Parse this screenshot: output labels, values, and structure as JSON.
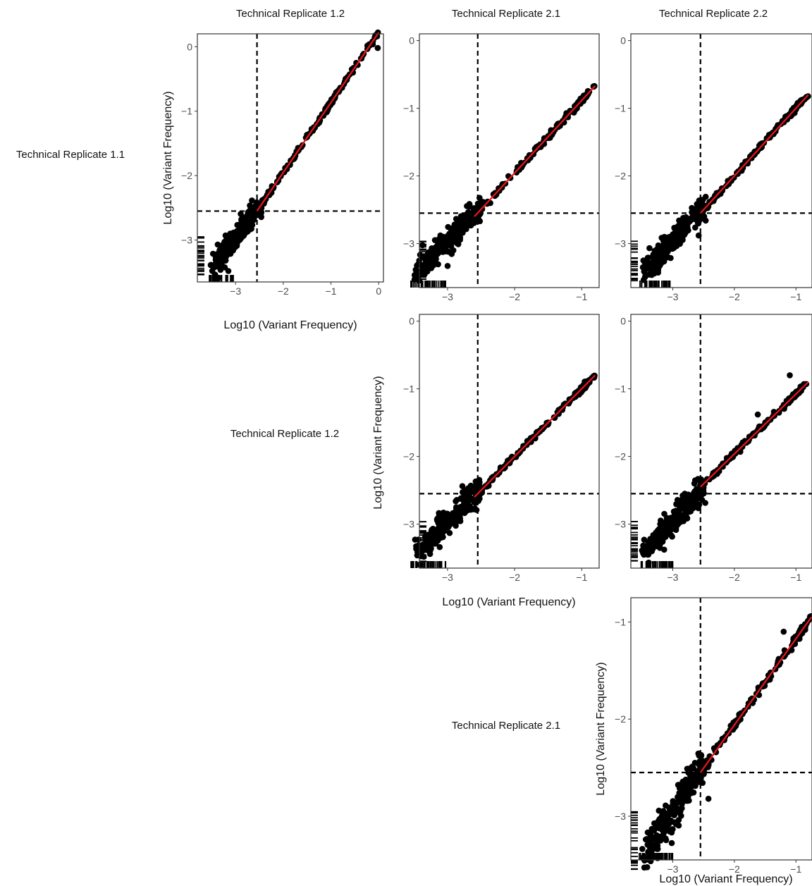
{
  "figure": {
    "column_labels": [
      "Technical Replicate 1.2",
      "Technical Replicate 2.1",
      "Technical Replicate 2.2"
    ],
    "row_labels": [
      "Technical Replicate 1.1",
      "Technical Replicate 1.2",
      "Technical Replicate 2.1"
    ],
    "axis_title": "Log10 (Variant Frequency)"
  },
  "colors": {
    "points": "#000000",
    "fit_line": "#e8141c",
    "threshold_lines": "#000000",
    "panel_border": "#333333"
  },
  "chart_data": [
    {
      "type": "scatter",
      "row": 0,
      "col": 0,
      "xlim": [
        -3.8,
        0.1
      ],
      "ylim": [
        -3.65,
        0.2
      ],
      "xticks": [
        -3,
        -2,
        -1,
        0
      ],
      "yticks": [
        -3,
        -2,
        -1,
        0
      ],
      "threshold": -2.55,
      "fit": {
        "x0": -2.55,
        "y0": -2.55,
        "x1": 0.0,
        "y1": 0.22
      },
      "outliers": [
        [
          -0.02,
          -0.02
        ],
        [
          -3.15,
          -3.48
        ]
      ],
      "grid": false
    },
    {
      "type": "scatter",
      "row": 0,
      "col": 1,
      "xlim": [
        -3.42,
        -0.74
      ],
      "ylim": [
        -3.65,
        0.1
      ],
      "xticks": [
        -3,
        -2,
        -1
      ],
      "yticks": [
        -3,
        -2,
        -1,
        0
      ],
      "threshold": -2.55,
      "fit": {
        "x0": -2.6,
        "y0": -2.6,
        "x1": -0.8,
        "y1": -0.67
      },
      "outliers": [
        [
          -3.0,
          -3.33
        ]
      ],
      "grid": false
    },
    {
      "type": "scatter",
      "row": 0,
      "col": 2,
      "xlim": [
        -3.68,
        -0.74
      ],
      "ylim": [
        -3.65,
        0.1
      ],
      "xticks": [
        -3,
        -2,
        -1
      ],
      "yticks": [
        -3,
        -2,
        -1,
        0
      ],
      "threshold": -2.55,
      "fit": {
        "x0": -2.55,
        "y0": -2.55,
        "x1": -0.8,
        "y1": -0.8
      },
      "outliers": [
        [
          -2.58,
          -2.88
        ]
      ],
      "grid": false
    },
    {
      "type": "scatter",
      "row": 1,
      "col": 1,
      "xlim": [
        -3.42,
        -0.74
      ],
      "ylim": [
        -3.65,
        0.1
      ],
      "xticks": [
        -3,
        -2,
        -1
      ],
      "yticks": [
        -3,
        -2,
        -1,
        0
      ],
      "threshold": -2.55,
      "fit": {
        "x0": -2.6,
        "y0": -2.6,
        "x1": -0.8,
        "y1": -0.8
      },
      "outliers": [
        [
          -3.42,
          -3.6
        ]
      ],
      "grid": false
    },
    {
      "type": "scatter",
      "row": 1,
      "col": 2,
      "xlim": [
        -3.68,
        -0.74
      ],
      "ylim": [
        -3.65,
        0.1
      ],
      "xticks": [
        -3,
        -2,
        -1
      ],
      "yticks": [
        -3,
        -2,
        -1,
        0
      ],
      "threshold": -2.55,
      "fit": {
        "x0": -2.55,
        "y0": -2.45,
        "x1": -0.8,
        "y1": -0.9
      },
      "outliers": [
        [
          -1.62,
          -1.38
        ],
        [
          -1.1,
          -0.8
        ]
      ],
      "grid": false
    },
    {
      "type": "scatter",
      "row": 2,
      "col": 2,
      "xlim": [
        -3.68,
        -0.74
      ],
      "ylim": [
        -3.45,
        -0.75
      ],
      "xticks": [
        -3,
        -2,
        -1
      ],
      "yticks": [
        -3,
        -2,
        -1
      ],
      "threshold": -2.55,
      "fit": {
        "x0": -2.55,
        "y0": -2.55,
        "x1": -0.75,
        "y1": -0.95
      },
      "outliers": [
        [
          -2.42,
          -2.82
        ],
        [
          -1.2,
          -1.1
        ]
      ],
      "grid": false
    }
  ]
}
